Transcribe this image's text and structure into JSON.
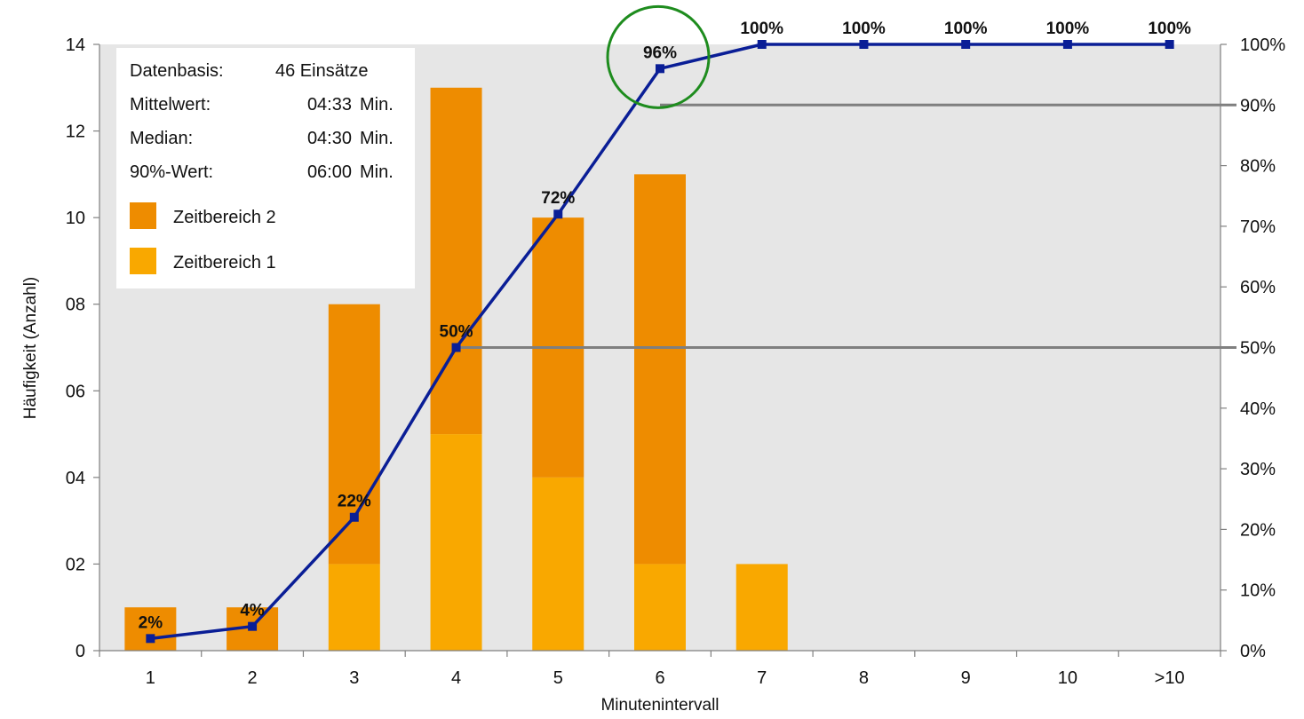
{
  "chart_data": {
    "type": "bar",
    "stacked": true,
    "categories": [
      "1",
      "2",
      "3",
      "4",
      "5",
      "6",
      "7",
      "8",
      "9",
      "10",
      ">10"
    ],
    "series": [
      {
        "name": "Zeitbereich 1",
        "color": "#f9a800",
        "values": [
          0,
          0,
          2,
          5,
          4,
          2,
          2,
          0,
          0,
          0,
          0
        ]
      },
      {
        "name": "Zeitbereich 2",
        "color": "#ee8c00",
        "values": [
          1,
          1,
          6,
          8,
          6,
          9,
          0,
          0,
          0,
          0,
          0
        ]
      }
    ],
    "cumulative": {
      "color": "#0a1e96",
      "values": [
        2,
        4,
        22,
        50,
        72,
        96,
        100,
        100,
        100,
        100,
        100
      ],
      "labels": [
        "2%",
        "4%",
        "22%",
        "50%",
        "72%",
        "96%",
        "100%",
        "100%",
        "100%",
        "100%",
        "100%"
      ]
    },
    "reference_lines": [
      {
        "value": 90,
        "from_category": "6",
        "color": "#7f7f7f"
      },
      {
        "value": 50,
        "from_category": "4",
        "color": "#7f7f7f"
      }
    ],
    "highlight": {
      "category": "6",
      "color": "#1e8c1e"
    },
    "xlabel": "Minutenintervall",
    "ylabel": "Häufigkeit  (Anzahl)",
    "ylim": [
      0,
      14
    ],
    "y_ticks": [
      "0",
      "02",
      "04",
      "06",
      "08",
      "10",
      "12",
      "14"
    ],
    "y2lim": [
      0,
      100
    ],
    "y2_ticks": [
      "0%",
      "10%",
      "20%",
      "30%",
      "40%",
      "50%",
      "60%",
      "70%",
      "80%",
      "90%",
      "100%"
    ],
    "plot_background": "#e6e6e6",
    "legend": {
      "placement": "top-left",
      "stats": [
        {
          "label": "Datenbasis:",
          "value": "46 Einsätze",
          "unit": ""
        },
        {
          "label": "Mittelwert:",
          "value": "04:33",
          "unit": "Min."
        },
        {
          "label": "Median:",
          "value": "04:30",
          "unit": "Min."
        },
        {
          "label": "90%-Wert:",
          "value": "06:00",
          "unit": "Min."
        }
      ]
    }
  }
}
